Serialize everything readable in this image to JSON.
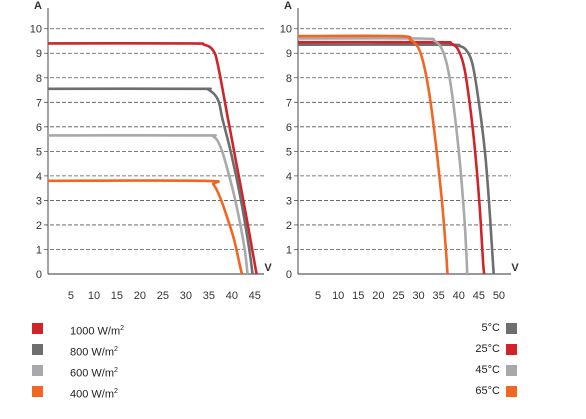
{
  "chart_data": [
    {
      "type": "line",
      "xlabel": "V",
      "ylabel": "A",
      "xlim": [
        0,
        47
      ],
      "ylim": [
        0,
        10.6
      ],
      "x_ticks": [
        5,
        10,
        15,
        20,
        25,
        30,
        35,
        40,
        45
      ],
      "y_ticks": [
        0,
        1,
        2,
        3,
        4,
        5,
        6,
        7,
        8,
        9,
        10
      ],
      "grid": "horizontal dashed",
      "legend": "below",
      "series": [
        {
          "name": "1000 W/m2",
          "color": "#d2232a",
          "points": [
            [
              0,
              9.4
            ],
            [
              30,
              9.4
            ],
            [
              34,
              9.35
            ],
            [
              36,
              9.1
            ],
            [
              37,
              8.5
            ],
            [
              39,
              6.5
            ],
            [
              41,
              4.5
            ],
            [
              43,
              2.5
            ],
            [
              45,
              0.4
            ],
            [
              45.4,
              0
            ]
          ]
        },
        {
          "name": "800 W/m2",
          "color": "#6d6e70",
          "points": [
            [
              0,
              7.55
            ],
            [
              32,
              7.55
            ],
            [
              35,
              7.5
            ],
            [
              37,
              7.1
            ],
            [
              38,
              6.3
            ],
            [
              40,
              4.8
            ],
            [
              42,
              3.0
            ],
            [
              43.8,
              1.0
            ],
            [
              44.5,
              0
            ]
          ]
        },
        {
          "name": "600 W/m2",
          "color": "#a7a9ac",
          "points": [
            [
              0,
              5.65
            ],
            [
              33,
              5.65
            ],
            [
              36,
              5.6
            ],
            [
              37.5,
              5.2
            ],
            [
              39,
              4.3
            ],
            [
              41,
              2.8
            ],
            [
              42.8,
              1.0
            ],
            [
              43.4,
              0
            ]
          ]
        },
        {
          "name": "400 W/m2",
          "color": "#f26522",
          "points": [
            [
              0,
              3.8
            ],
            [
              34,
              3.8
            ],
            [
              36,
              3.65
            ],
            [
              37.5,
              3.1
            ],
            [
              39,
              2.3
            ],
            [
              40.5,
              1.4
            ],
            [
              41.7,
              0.4
            ],
            [
              42.2,
              0
            ]
          ]
        }
      ]
    },
    {
      "type": "line",
      "xlabel": "V",
      "ylabel": "A",
      "xlim": [
        0,
        53
      ],
      "ylim": [
        0,
        10.6
      ],
      "x_ticks": [
        5,
        10,
        15,
        20,
        25,
        30,
        35,
        40,
        45,
        50
      ],
      "y_ticks": [
        0,
        1,
        2,
        3,
        4,
        5,
        6,
        7,
        8,
        9,
        10
      ],
      "grid": "horizontal dashed",
      "legend": "below",
      "series": [
        {
          "name": "5°C",
          "color": "#6d6e70",
          "points": [
            [
              0,
              9.35
            ],
            [
              36,
              9.35
            ],
            [
              40,
              9.3
            ],
            [
              42,
              9.1
            ],
            [
              43.5,
              8.5
            ],
            [
              45,
              7.0
            ],
            [
              46.5,
              5.0
            ],
            [
              47.5,
              3.0
            ],
            [
              48.3,
              1.0
            ],
            [
              48.7,
              0
            ]
          ]
        },
        {
          "name": "25°C",
          "color": "#d2232a",
          "points": [
            [
              0,
              9.45
            ],
            [
              34,
              9.45
            ],
            [
              38,
              9.4
            ],
            [
              40,
              9.1
            ],
            [
              41.5,
              8.3
            ],
            [
              43,
              6.6
            ],
            [
              44.3,
              4.6
            ],
            [
              45.3,
              2.5
            ],
            [
              46,
              0.6
            ],
            [
              46.3,
              0
            ]
          ]
        },
        {
          "name": "45°C",
          "color": "#a7a9ac",
          "points": [
            [
              0,
              9.6
            ],
            [
              30,
              9.6
            ],
            [
              34,
              9.5
            ],
            [
              36,
              9.1
            ],
            [
              37.5,
              8.2
            ],
            [
              39,
              6.5
            ],
            [
              40.3,
              4.5
            ],
            [
              41.3,
              2.5
            ],
            [
              41.9,
              0.8
            ],
            [
              42.1,
              0
            ]
          ]
        },
        {
          "name": "65°C",
          "color": "#f26522",
          "points": [
            [
              0,
              9.7
            ],
            [
              25,
              9.7
            ],
            [
              28,
              9.55
            ],
            [
              30,
              9.2
            ],
            [
              31.5,
              8.4
            ],
            [
              33,
              7.0
            ],
            [
              34.5,
              5.0
            ],
            [
              35.8,
              3.0
            ],
            [
              36.8,
              1.0
            ],
            [
              37.2,
              0
            ]
          ]
        }
      ]
    }
  ],
  "legend_left": [
    {
      "label": "1000 W/m",
      "sup": "2",
      "color": "#d2232a"
    },
    {
      "label": "800 W/m",
      "sup": "2",
      "color": "#6d6e70"
    },
    {
      "label": "600 W/m",
      "sup": "2",
      "color": "#a7a9ac"
    },
    {
      "label": "400 W/m",
      "sup": "2",
      "color": "#f26522"
    }
  ],
  "legend_right": [
    {
      "label": "5°C",
      "color": "#6d6e70"
    },
    {
      "label": "25°C",
      "color": "#d2232a"
    },
    {
      "label": "45°C",
      "color": "#a7a9ac"
    },
    {
      "label": "65°C",
      "color": "#f26522"
    }
  ]
}
